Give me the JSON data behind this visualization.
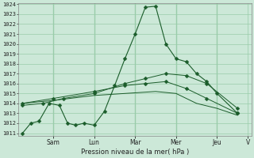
{
  "background_color": "#cce8d8",
  "grid_color": "#99ccaa",
  "line_color": "#1a5c2a",
  "ylabel": "Pression niveau de la mer( hPa )",
  "ylim": [
    1011,
    1024
  ],
  "yticks": [
    1011,
    1012,
    1013,
    1014,
    1015,
    1016,
    1017,
    1018,
    1019,
    1020,
    1021,
    1022,
    1023,
    1024
  ],
  "x_day_labels": [
    "Sam",
    "Lun",
    "Mar",
    "Mer",
    "Jeu",
    "V"
  ],
  "series": {
    "spiky": {
      "x": [
        0,
        0.4,
        0.8,
        1.3,
        1.8,
        2.2,
        2.6,
        3.0,
        3.5,
        4.0,
        4.5,
        5.0,
        5.5,
        6.0,
        6.5,
        7.0,
        7.5,
        8.0,
        8.5,
        9.0,
        9.5,
        10.5
      ],
      "y": [
        1011,
        1012,
        1012.2,
        1014,
        1013.8,
        1012,
        1011.8,
        1012,
        1011.8,
        1013.2,
        1015.8,
        1018.5,
        1021,
        1023.7,
        1023.8,
        1020,
        1018.5,
        1018.2,
        1017,
        1016.2,
        1015,
        1013
      ],
      "markers": true
    },
    "upper_smooth": {
      "x": [
        0,
        1.0,
        2.0,
        3.5,
        5.0,
        6.0,
        7.0,
        8.0,
        9.0,
        10.5
      ],
      "y": [
        1013.8,
        1014,
        1014.5,
        1015,
        1016,
        1016.5,
        1017,
        1016.8,
        1016,
        1013.5
      ],
      "markers": true
    },
    "mid_smooth": {
      "x": [
        0,
        1.5,
        3.5,
        5.0,
        6.0,
        7.0,
        8.0,
        9.0,
        10.5
      ],
      "y": [
        1014,
        1014.5,
        1015.2,
        1015.8,
        1016,
        1016.2,
        1015.5,
        1014.5,
        1013
      ],
      "markers": true
    },
    "lower_flat": {
      "x": [
        0,
        1.5,
        3.5,
        5.0,
        6.5,
        7.5,
        8.5,
        9.5,
        10.5
      ],
      "y": [
        1014,
        1014.3,
        1014.8,
        1015,
        1015.2,
        1015,
        1014,
        1013.5,
        1012.8
      ],
      "markers": false
    }
  },
  "x_tick_positions": [
    1.5,
    3.5,
    5.5,
    7.5,
    9.5,
    11.0
  ],
  "xlim": [
    -0.2,
    11.2
  ]
}
